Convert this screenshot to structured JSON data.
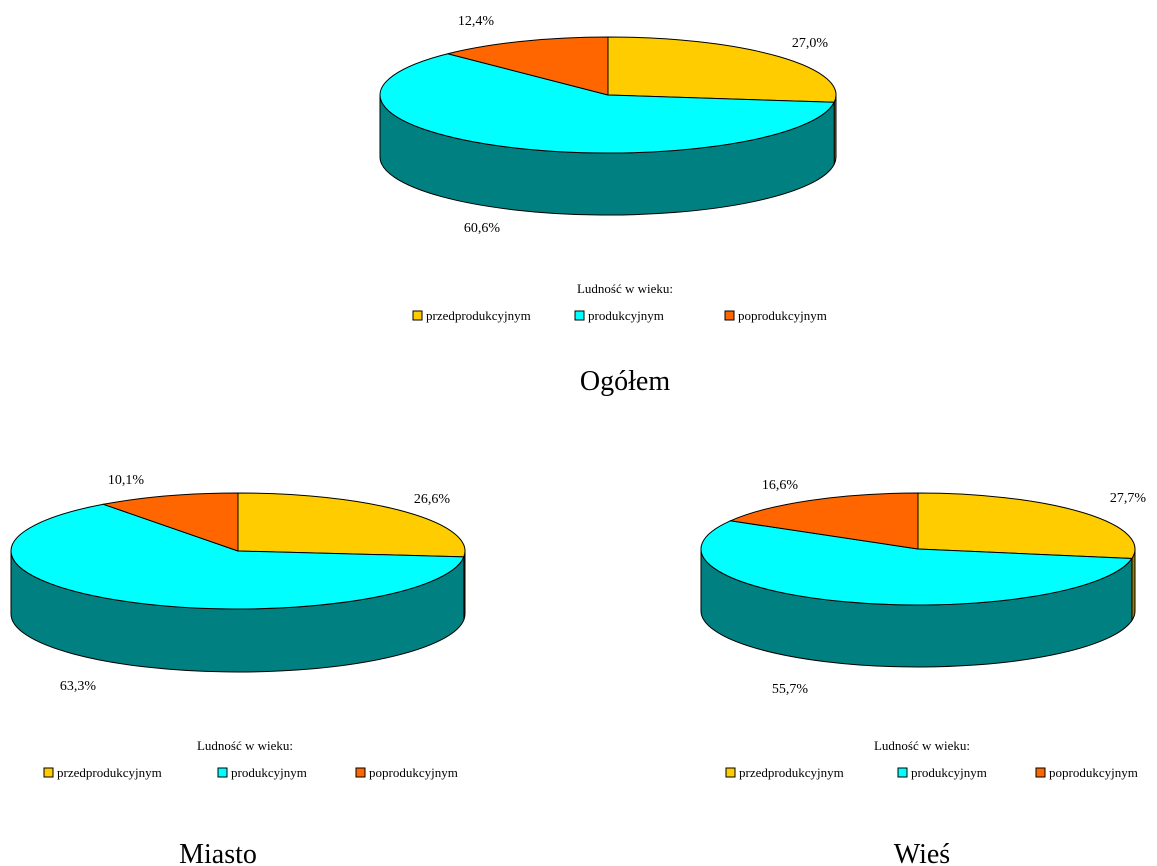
{
  "legend": {
    "title": "Ludność w wieku:",
    "items": [
      "przedprodukcyjnym",
      "produkcyjnym",
      "poprodukcyjnym"
    ]
  },
  "colors": {
    "przedprodukcyjnym": "#FFCC00",
    "produkcyjnym": "#00FFFF",
    "poprodukcyjnym": "#FF6600",
    "produkcyjnym_side": "#008080",
    "przedprodukcyjnym_side": "#998000",
    "poprodukcyjnym_side": "#993D00"
  },
  "chart_data": [
    {
      "type": "pie",
      "title": "Ogółem",
      "categories": [
        "przedprodukcyjnym",
        "produkcyjnym",
        "poprodukcyjnym"
      ],
      "values": [
        27.0,
        60.6,
        12.4
      ],
      "labels": [
        "27,0%",
        "60,6%",
        "12,4%"
      ],
      "legend_title": "Ludność w wieku:",
      "legend_position": "bottom",
      "style": "3d"
    },
    {
      "type": "pie",
      "title": "Miasto",
      "categories": [
        "przedprodukcyjnym",
        "produkcyjnym",
        "poprodukcyjnym"
      ],
      "values": [
        26.6,
        63.3,
        10.1
      ],
      "labels": [
        "26,6%",
        "63,3%",
        "10,1%"
      ],
      "legend_title": "Ludność w wieku:",
      "legend_position": "bottom",
      "style": "3d"
    },
    {
      "type": "pie",
      "title": "Wieś",
      "categories": [
        "przedprodukcyjnym",
        "produkcyjnym",
        "poprodukcyjnym"
      ],
      "values": [
        27.7,
        55.7,
        16.6
      ],
      "labels": [
        "27,7%",
        "55,7%",
        "16,6%"
      ],
      "legend_title": "Ludność w wieku:",
      "legend_position": "bottom",
      "style": "3d"
    }
  ]
}
